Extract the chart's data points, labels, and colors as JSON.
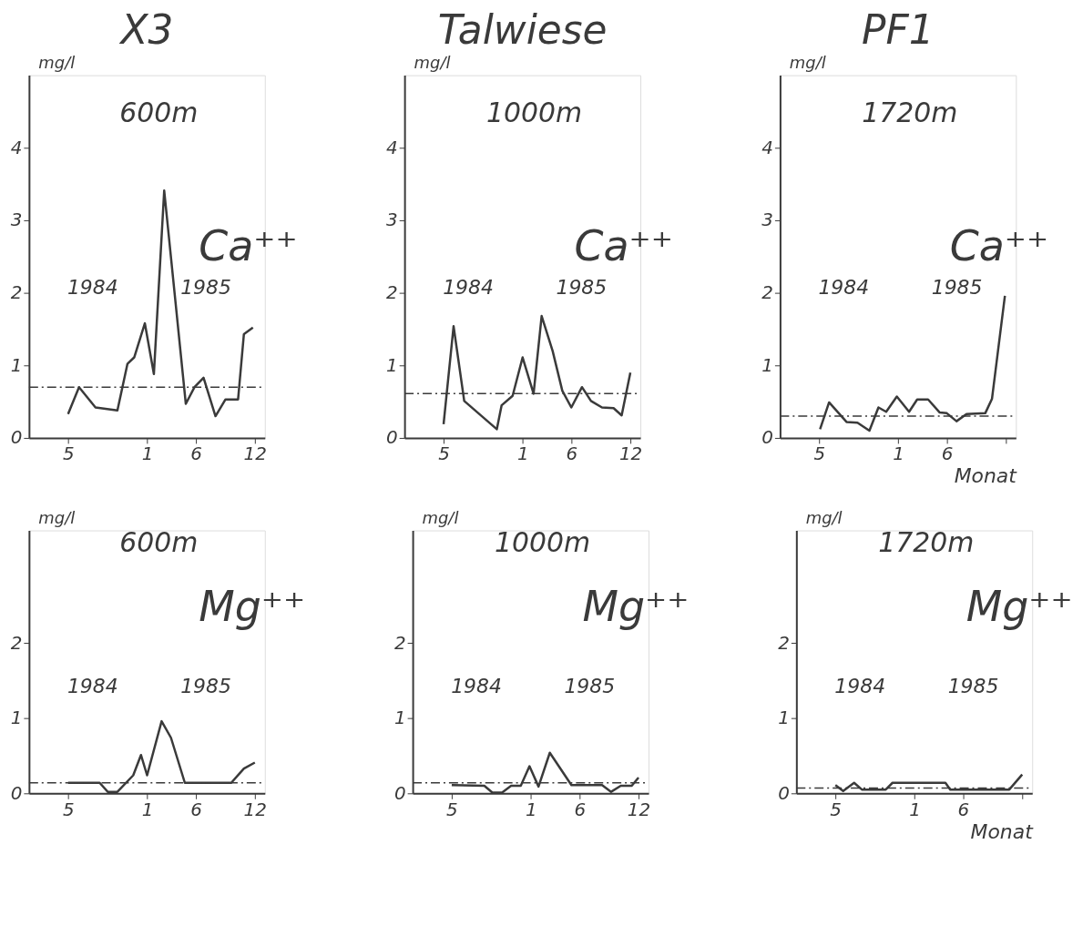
{
  "chart_data": [
    {
      "type": "line",
      "title": "X3",
      "ylabel": "mg/l",
      "x": [
        "1984-05-01",
        "1984-06-04",
        "1984-07-25",
        "1984-10-01",
        "1984-11-01",
        "1984-11-22",
        "1984-12-25",
        "1985-01-22",
        "1985-02-23",
        "1985-05-01",
        "1985-05-28",
        "1985-06-25",
        "1985-08-01",
        "1985-09-01",
        "1985-10-10",
        "1985-10-28",
        "1985-11-25"
      ],
      "series": [
        {
          "color": "#3a3a3a",
          "values": [
            0.33,
            0.7,
            0.42,
            0.38,
            1.02,
            1.11,
            1.58,
            0.88,
            3.41,
            0.47,
            0.7,
            0.83,
            0.3,
            0.53,
            0.53,
            1.43,
            1.52
          ]
        }
      ],
      "xlim": [
        "1984-01-01",
        "1986-01-01"
      ],
      "ylim": [
        0,
        5
      ],
      "xticks": [
        {
          "value": "1984-05-01",
          "label": "5"
        },
        {
          "value": "1985-01-01",
          "label": "1"
        },
        {
          "value": "1985-06-01",
          "label": "6"
        },
        {
          "value": "1985-12-01",
          "label": "12"
        }
      ],
      "yticks": [
        0,
        1,
        2,
        3,
        4
      ],
      "grid": false,
      "ref_lines": [
        {
          "axis": "y",
          "value": 0.7,
          "line_style": "dashed",
          "color": "#3a3a3a"
        }
      ],
      "annotations": [
        "600m",
        "Ca⁺⁺",
        "1984",
        "1985"
      ]
    },
    {
      "type": "line",
      "title": "Talwiese",
      "ylabel": "mg/l",
      "x": [
        "1984-05-01",
        "1984-06-01",
        "1984-07-04",
        "1984-10-13",
        "1984-10-28",
        "1984-12-01",
        "1985-01-01",
        "1985-02-04",
        "1985-03-01",
        "1985-04-04",
        "1985-05-04",
        "1985-06-01",
        "1985-07-04",
        "1985-08-01",
        "1985-09-04",
        "1985-10-10",
        "1985-11-04",
        "1985-12-01"
      ],
      "series": [
        {
          "color": "#3a3a3a",
          "values": [
            0.19,
            1.54,
            0.51,
            0.12,
            0.45,
            0.58,
            1.11,
            0.61,
            1.68,
            1.2,
            0.65,
            0.42,
            0.7,
            0.51,
            0.42,
            0.41,
            0.31,
            0.9
          ]
        }
      ],
      "xlim": [
        "1984-01-01",
        "1986-01-01"
      ],
      "ylim": [
        0,
        5
      ],
      "xticks": [
        {
          "value": "1984-05-01",
          "label": "5"
        },
        {
          "value": "1985-01-01",
          "label": "1"
        },
        {
          "value": "1985-06-01",
          "label": "6"
        },
        {
          "value": "1985-12-01",
          "label": "12"
        }
      ],
      "yticks": [
        0,
        1,
        2,
        3,
        4
      ],
      "grid": false,
      "ref_lines": [
        {
          "axis": "y",
          "value": 0.61,
          "line_style": "dashed",
          "color": "#3a3a3a"
        }
      ],
      "annotations": [
        "1000m",
        "Ca⁺⁺",
        "1984",
        "1985"
      ]
    },
    {
      "type": "line",
      "title": "PF1",
      "ylabel": "mg/l",
      "xlabel": "Monat",
      "x": [
        "1984-05-04",
        "1984-06-01",
        "1984-07-25",
        "1984-08-28",
        "1984-10-04",
        "1984-11-01",
        "1984-11-25",
        "1984-12-28",
        "1985-02-04",
        "1985-03-01",
        "1985-04-04",
        "1985-05-10",
        "1985-06-01",
        "1985-07-01",
        "1985-08-01",
        "1985-09-28",
        "1985-10-19",
        "1985-11-28"
      ],
      "series": [
        {
          "color": "#3a3a3a",
          "values": [
            0.12,
            0.49,
            0.22,
            0.21,
            0.1,
            0.42,
            0.36,
            0.57,
            0.36,
            0.53,
            0.53,
            0.35,
            0.34,
            0.23,
            0.33,
            0.34,
            0.54,
            1.96
          ]
        }
      ],
      "xlim": [
        "1984-01-01",
        "1986-01-01"
      ],
      "ylim": [
        0,
        5
      ],
      "xticks": [
        {
          "value": "1984-05-01",
          "label": "5"
        },
        {
          "value": "1985-01-01",
          "label": "1"
        },
        {
          "value": "1985-06-01",
          "label": "6"
        },
        {
          "value": "1985-12-01",
          "label": null
        }
      ],
      "yticks": [
        0,
        1,
        2,
        3,
        4
      ],
      "grid": false,
      "ref_lines": [
        {
          "axis": "y",
          "value": 0.3,
          "line_style": "dashed",
          "color": "#3a3a3a"
        }
      ],
      "annotations": [
        "1720m",
        "Ca⁺⁺",
        "1984",
        "1985"
      ]
    },
    {
      "type": "line",
      "ylabel": "mg/l",
      "x": [
        "1984-05-01",
        "1984-08-07",
        "1984-09-01",
        "1984-10-01",
        "1984-11-19",
        "1984-12-13",
        "1985-01-01",
        "1985-02-15",
        "1985-03-16",
        "1985-04-28",
        "1985-09-19",
        "1985-10-28",
        "1985-12-01"
      ],
      "series": [
        {
          "color": "#3a3a3a",
          "values": [
            0.14,
            0.14,
            0.02,
            0.02,
            0.24,
            0.51,
            0.24,
            0.96,
            0.74,
            0.14,
            0.14,
            0.33,
            0.41
          ]
        }
      ],
      "xlim": [
        "1984-01-01",
        "1986-01-01"
      ],
      "ylim": [
        0,
        3.5
      ],
      "xticks": [
        {
          "value": "1984-05-01",
          "label": "5"
        },
        {
          "value": "1985-01-01",
          "label": "1"
        },
        {
          "value": "1985-06-01",
          "label": "6"
        },
        {
          "value": "1985-12-01",
          "label": "12"
        }
      ],
      "yticks": [
        0,
        1,
        2
      ],
      "grid": false,
      "ref_lines": [
        {
          "axis": "y",
          "value": 0.14,
          "line_style": "dashed",
          "color": "#3a3a3a"
        }
      ],
      "annotations": [
        "600m",
        "Mg⁺⁺",
        "1984",
        "1985"
      ]
    },
    {
      "type": "line",
      "ylabel": "mg/l",
      "x": [
        "1984-05-01",
        "1984-08-10",
        "1984-09-04",
        "1984-10-04",
        "1984-11-01",
        "1984-12-01",
        "1984-12-28",
        "1985-01-25",
        "1985-03-01",
        "1985-05-07",
        "1985-08-10",
        "1985-09-07",
        "1985-10-07",
        "1985-11-10",
        "1985-12-01"
      ],
      "series": [
        {
          "color": "#3a3a3a",
          "values": [
            0.11,
            0.1,
            0.01,
            0.01,
            0.1,
            0.1,
            0.36,
            0.09,
            0.54,
            0.11,
            0.11,
            0.02,
            0.1,
            0.1,
            0.21
          ]
        }
      ],
      "xlim": [
        "1984-01-01",
        "1986-01-01"
      ],
      "ylim": [
        0,
        3.5
      ],
      "xticks": [
        {
          "value": "1984-05-01",
          "label": "5"
        },
        {
          "value": "1985-01-01",
          "label": "1"
        },
        {
          "value": "1985-06-01",
          "label": "6"
        },
        {
          "value": "1985-12-01",
          "label": "12"
        }
      ],
      "yticks": [
        0,
        1,
        2
      ],
      "grid": false,
      "ref_lines": [
        {
          "axis": "y",
          "value": 0.14,
          "line_style": "dashed",
          "color": "#3a3a3a"
        }
      ],
      "annotations": [
        "1000m",
        "Mg⁺⁺",
        "1984",
        "1985"
      ]
    },
    {
      "type": "line",
      "ylabel": "mg/l",
      "xlabel": "Monat",
      "x": [
        "1984-05-01",
        "1984-05-25",
        "1984-06-28",
        "1984-07-22",
        "1984-10-04",
        "1984-10-25",
        "1985-04-07",
        "1985-04-22",
        "1985-10-22",
        "1985-12-01"
      ],
      "series": [
        {
          "color": "#3a3a3a",
          "values": [
            0.11,
            0.03,
            0.14,
            0.05,
            0.05,
            0.14,
            0.14,
            0.05,
            0.05,
            0.25
          ]
        }
      ],
      "xlim": [
        "1984-01-01",
        "1986-01-01"
      ],
      "ylim": [
        0,
        3.5
      ],
      "xticks": [
        {
          "value": "1984-05-01",
          "label": "5"
        },
        {
          "value": "1985-01-01",
          "label": "1"
        },
        {
          "value": "1985-06-01",
          "label": "6"
        },
        {
          "value": "1985-12-01",
          "label": null
        }
      ],
      "yticks": [
        0,
        1,
        2
      ],
      "grid": false,
      "ref_lines": [
        {
          "axis": "y",
          "value": 0.07,
          "line_style": "dashed",
          "color": "#3a3a3a"
        }
      ],
      "annotations": [
        "1720m",
        "Mg⁺⁺",
        "1984",
        "1985"
      ]
    }
  ]
}
